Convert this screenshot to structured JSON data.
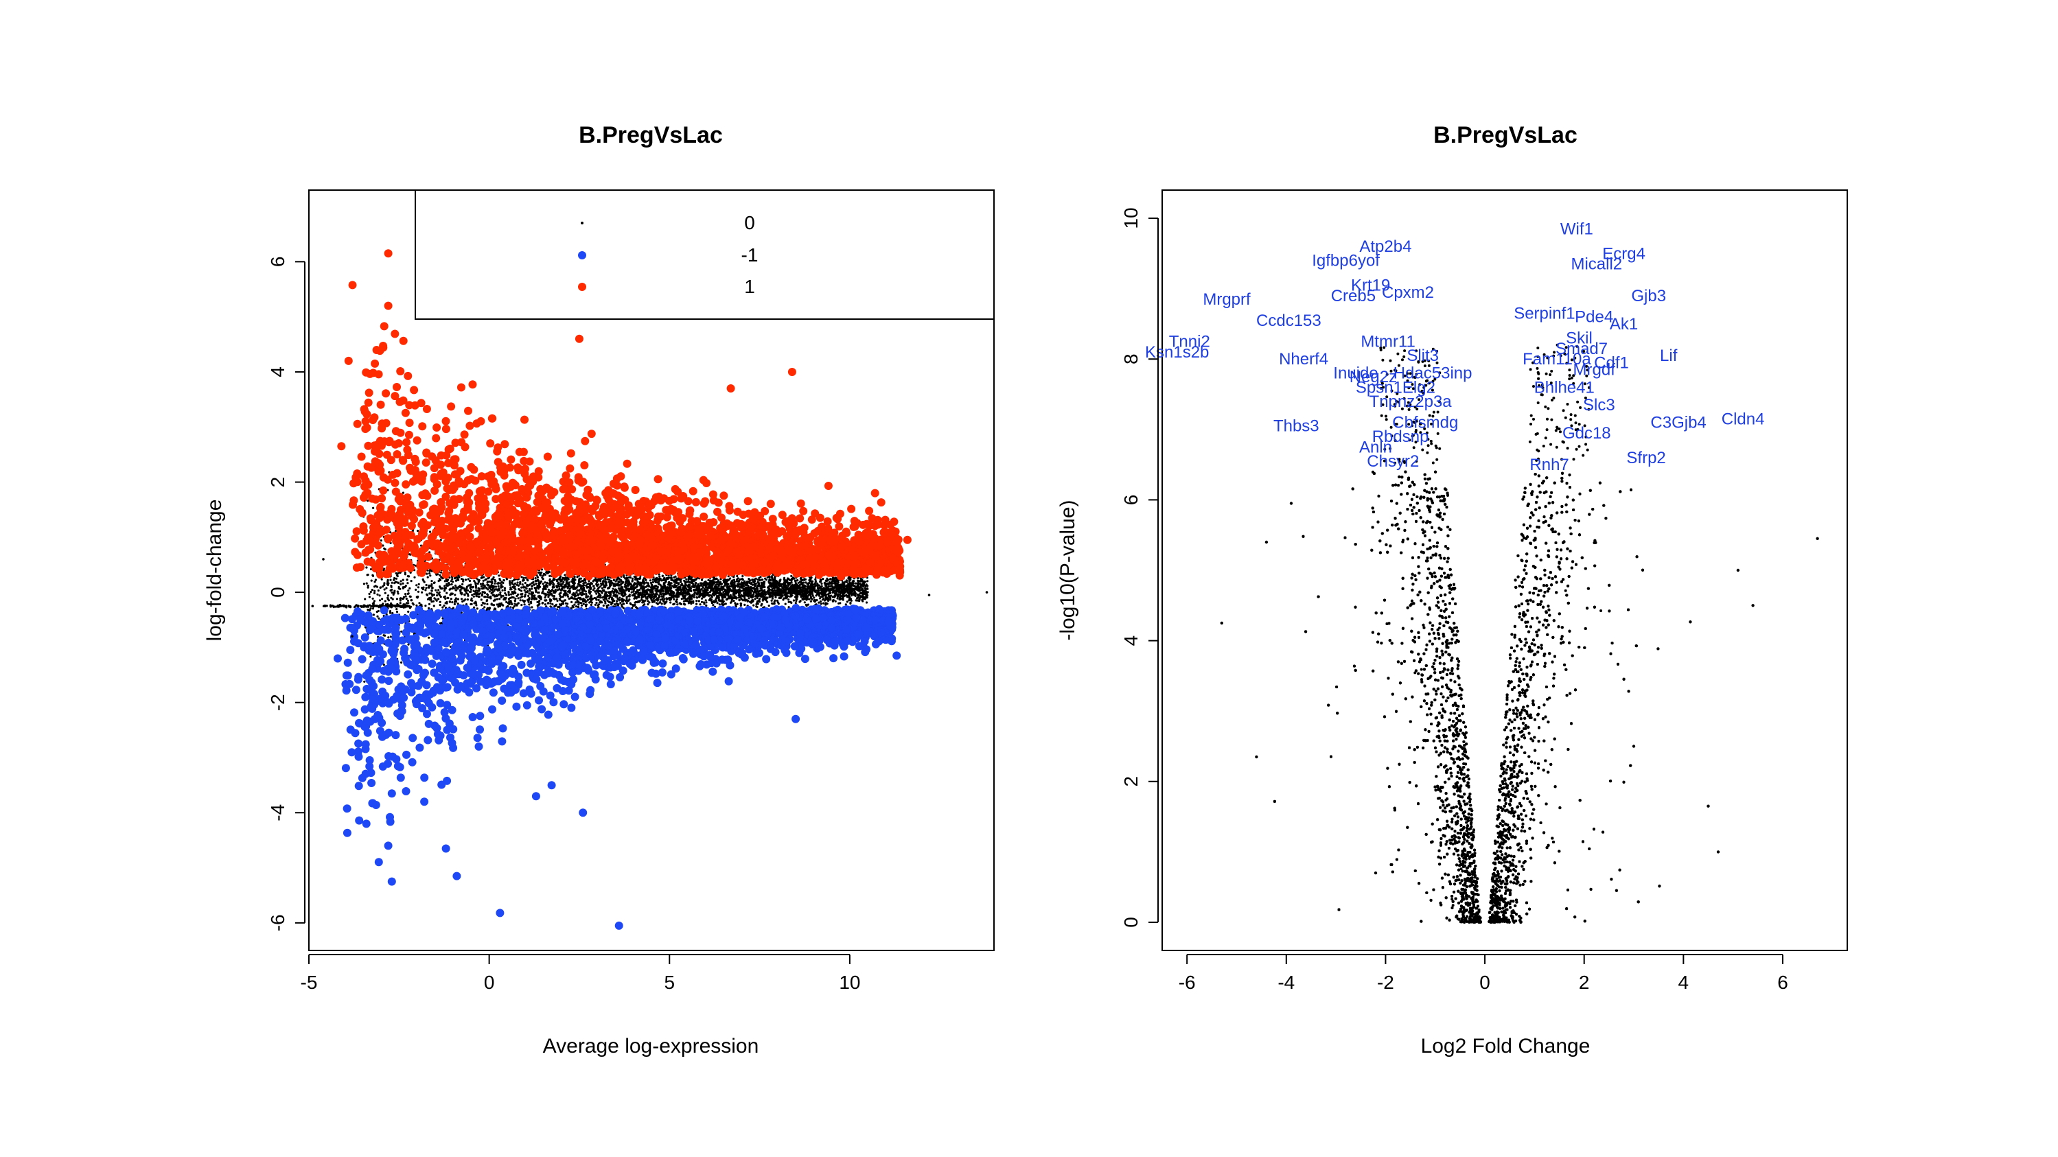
{
  "chart_data": [
    {
      "type": "scatter",
      "title": "B.PregVsLac",
      "xlabel": "Average log-expression",
      "ylabel": "log-fold-change",
      "xlim": [
        -5,
        14
      ],
      "ylim": [
        -6.5,
        7.3
      ],
      "xticks": [
        -5,
        0,
        5,
        10
      ],
      "yticks": [
        -6,
        -4,
        -2,
        0,
        2,
        4,
        6
      ],
      "legend": {
        "position": "top-right",
        "entries": [
          {
            "label": "0",
            "color": "#000000",
            "marker": "dot"
          },
          {
            "label": "-1",
            "color": "#1e47f5",
            "marker": "circle"
          },
          {
            "label": "1",
            "color": "#ff2a00",
            "marker": "circle"
          }
        ]
      },
      "series": [
        {
          "name": "0",
          "color": "#000000",
          "description": "not significant",
          "points": [
            [
              -4.9,
              -0.25
            ],
            [
              -3.2,
              -0.25
            ],
            [
              -2.5,
              -0.25
            ],
            [
              -4.6,
              0.6
            ],
            [
              -3.8,
              -0.8
            ],
            [
              13.8,
              0.0
            ],
            [
              12.2,
              -0.05
            ]
          ]
        },
        {
          "name": "-1",
          "color": "#1e47f5",
          "description": "down-regulated",
          "points": [
            [
              3.6,
              -6.05
            ],
            [
              0.3,
              -5.82
            ],
            [
              -0.9,
              -5.15
            ],
            [
              -2.7,
              -5.25
            ],
            [
              -1.2,
              -4.65
            ],
            [
              -2.8,
              -4.6
            ],
            [
              2.6,
              -4.0
            ],
            [
              -1.8,
              -3.8
            ],
            [
              1.3,
              -3.7
            ],
            [
              -2.7,
              -3.65
            ],
            [
              8.5,
              -2.3
            ],
            [
              11.3,
              -1.15
            ],
            [
              -4.2,
              -1.2
            ],
            [
              10.7,
              -0.5
            ]
          ]
        },
        {
          "name": "1",
          "color": "#ff2a00",
          "description": "up-regulated",
          "points": [
            [
              -2.8,
              6.15
            ],
            [
              -2.8,
              5.2
            ],
            [
              -3.9,
              4.2
            ],
            [
              8.4,
              4.0
            ],
            [
              6.7,
              3.7
            ],
            [
              -4.1,
              2.65
            ],
            [
              11.6,
              0.95
            ],
            [
              10.7,
              1.8
            ],
            [
              0.1,
              5.0
            ],
            [
              2.5,
              4.6
            ]
          ]
        }
      ]
    },
    {
      "type": "scatter",
      "title": "B.PregVsLac",
      "xlabel": "Log2 Fold Change",
      "ylabel": "-log10(P-value)",
      "xlim": [
        -6.5,
        7.3
      ],
      "ylim": [
        -0.4,
        10.4
      ],
      "xticks": [
        -6,
        -4,
        -2,
        0,
        2,
        4,
        6
      ],
      "yticks": [
        0,
        2,
        4,
        6,
        8,
        10
      ],
      "series": [
        {
          "name": "genes",
          "color": "#000000",
          "points": [
            [
              6.7,
              5.45
            ],
            [
              5.4,
              4.5
            ],
            [
              5.1,
              5.0
            ],
            [
              4.7,
              1.0
            ],
            [
              4.5,
              1.65
            ],
            [
              -5.3,
              4.25
            ],
            [
              -4.6,
              2.35
            ],
            [
              -4.4,
              5.4
            ],
            [
              -3.9,
              5.95
            ],
            [
              -2.2,
              0.7
            ],
            [
              1.5,
              5.1
            ],
            [
              -1.5,
              4.5
            ],
            [
              3.0,
              2.5
            ]
          ]
        }
      ],
      "gene_labels": [
        {
          "text": "Wif1",
          "x": 1.85,
          "y": 9.85
        },
        {
          "text": "Atp2b4",
          "x": -2.0,
          "y": 9.6
        },
        {
          "text": "Ecrg4",
          "x": 2.8,
          "y": 9.5
        },
        {
          "text": "Igfbp6yof",
          "x": -2.8,
          "y": 9.4
        },
        {
          "text": "Micall2",
          "x": 2.25,
          "y": 9.35
        },
        {
          "text": "Krt19",
          "x": -2.3,
          "y": 9.05
        },
        {
          "text": "Creb5",
          "x": -2.65,
          "y": 8.9
        },
        {
          "text": "Cpxm2",
          "x": -1.55,
          "y": 8.95
        },
        {
          "text": "Mrgprf",
          "x": -5.2,
          "y": 8.85
        },
        {
          "text": "Gjb3",
          "x": 3.3,
          "y": 8.9
        },
        {
          "text": "Serpinf1",
          "x": 1.2,
          "y": 8.65
        },
        {
          "text": "Pde4",
          "x": 2.2,
          "y": 8.6
        },
        {
          "text": "Ccdc153",
          "x": -3.95,
          "y": 8.55
        },
        {
          "text": "Ak1",
          "x": 2.8,
          "y": 8.5
        },
        {
          "text": "Skil",
          "x": 1.9,
          "y": 8.3
        },
        {
          "text": "Tnni2",
          "x": -5.95,
          "y": 8.25
        },
        {
          "text": "Mtmr11",
          "x": -1.95,
          "y": 8.25
        },
        {
          "text": "Smad7",
          "x": 1.95,
          "y": 8.15
        },
        {
          "text": "Ksn1s2b",
          "x": -6.2,
          "y": 8.1
        },
        {
          "text": "Slit3",
          "x": -1.25,
          "y": 8.05
        },
        {
          "text": "Nherf4",
          "x": -3.65,
          "y": 8.0
        },
        {
          "text": "Fam110a",
          "x": 1.45,
          "y": 8.0
        },
        {
          "text": "Lif",
          "x": 3.7,
          "y": 8.05
        },
        {
          "text": "Cdf1",
          "x": 2.55,
          "y": 7.95
        },
        {
          "text": "Mrgdf",
          "x": 2.2,
          "y": 7.85
        },
        {
          "text": "Hdac53inp",
          "x": -1.05,
          "y": 7.8
        },
        {
          "text": "Inuide",
          "x": -2.6,
          "y": 7.8
        },
        {
          "text": "Neg2z",
          "x": -2.25,
          "y": 7.75
        },
        {
          "text": "Bhlhe41",
          "x": 1.6,
          "y": 7.6
        },
        {
          "text": "Spsn1Elg2",
          "x": -1.8,
          "y": 7.6
        },
        {
          "text": "Tnpnz2p3a",
          "x": -1.5,
          "y": 7.4
        },
        {
          "text": "Slc3",
          "x": 2.3,
          "y": 7.35
        },
        {
          "text": "C3Gjb4",
          "x": 3.9,
          "y": 7.1
        },
        {
          "text": "Cldn4",
          "x": 5.2,
          "y": 7.15
        },
        {
          "text": "Thbs3",
          "x": -3.8,
          "y": 7.05
        },
        {
          "text": "Gdc18",
          "x": 2.05,
          "y": 6.95
        },
        {
          "text": "Cbfsmdg",
          "x": -1.2,
          "y": 7.1
        },
        {
          "text": "Sfrp2",
          "x": 3.25,
          "y": 6.6
        },
        {
          "text": "Rbdsnp",
          "x": -1.7,
          "y": 6.9
        },
        {
          "text": "Anln",
          "x": -2.2,
          "y": 6.75
        },
        {
          "text": "Chsyr2",
          "x": -1.85,
          "y": 6.55
        },
        {
          "text": "Rnh7",
          "x": 1.3,
          "y": 6.5
        }
      ]
    }
  ]
}
